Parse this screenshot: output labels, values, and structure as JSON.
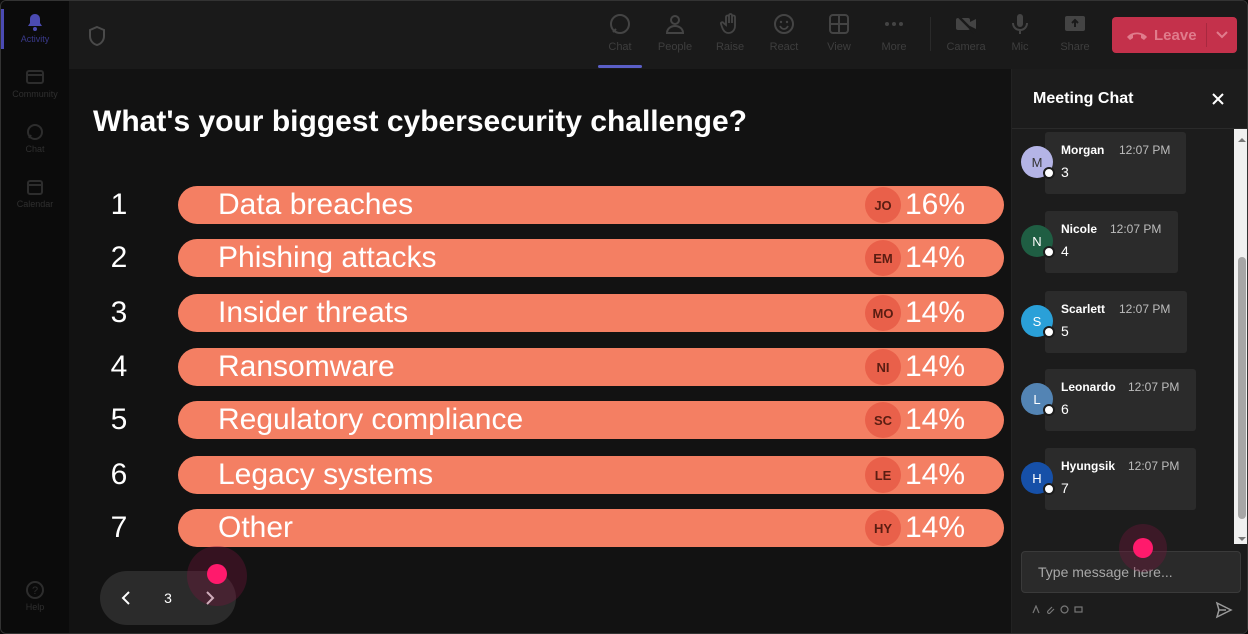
{
  "rail": {
    "items": [
      {
        "label": "Activity",
        "icon": "bell-icon"
      },
      {
        "label": "Community",
        "icon": "community-icon"
      },
      {
        "label": "Chat",
        "icon": "chat-icon"
      },
      {
        "label": "Calendar",
        "icon": "calendar-icon"
      }
    ],
    "help_label": "Help"
  },
  "toolbar": {
    "items": [
      {
        "label": "Chat",
        "icon": "chat-icon"
      },
      {
        "label": "People",
        "icon": "people-icon"
      },
      {
        "label": "Raise",
        "icon": "hand-icon"
      },
      {
        "label": "React",
        "icon": "smiley-icon"
      },
      {
        "label": "View",
        "icon": "grid-icon"
      },
      {
        "label": "More",
        "icon": "more-icon"
      },
      {
        "label": "Camera",
        "icon": "camera-off-icon"
      },
      {
        "label": "Mic",
        "icon": "mic-icon"
      },
      {
        "label": "Share",
        "icon": "share-icon"
      }
    ],
    "leave_label": "Leave"
  },
  "poll": {
    "question": "What's your biggest cybersecurity challenge?",
    "options": [
      {
        "num": "1",
        "label": "Data breaches",
        "initials": "JO",
        "percent": "16%"
      },
      {
        "num": "2",
        "label": "Phishing attacks",
        "initials": "EM",
        "percent": "14%"
      },
      {
        "num": "3",
        "label": "Insider threats",
        "initials": "MO",
        "percent": "14%"
      },
      {
        "num": "4",
        "label": "Ransomware",
        "initials": "NI",
        "percent": "14%"
      },
      {
        "num": "5",
        "label": "Regulatory compliance",
        "initials": "SC",
        "percent": "14%"
      },
      {
        "num": "6",
        "label": "Legacy systems",
        "initials": "LE",
        "percent": "14%"
      },
      {
        "num": "7",
        "label": "Other",
        "initials": "HY",
        "percent": "14%"
      }
    ],
    "page": "3"
  },
  "chat": {
    "title": "Meeting Chat",
    "messages": [
      {
        "name": "Morgan",
        "time": "12:07 PM",
        "text": "3",
        "initial": "M",
        "color": "#b4b4e6"
      },
      {
        "name": "Nicole",
        "time": "12:07 PM",
        "text": "4",
        "initial": "N",
        "color": "#1f5e43"
      },
      {
        "name": "Scarlett",
        "time": "12:07 PM",
        "text": "5",
        "initial": "S",
        "color": "#2aa0d8"
      },
      {
        "name": "Leonardo",
        "time": "12:07 PM",
        "text": "6",
        "initial": "L",
        "color": "#5384b4"
      },
      {
        "name": "Hyungsik",
        "time": "12:07 PM",
        "text": "7",
        "initial": "H",
        "color": "#1650a8"
      }
    ],
    "input_placeholder": "Type message here..."
  },
  "colors": {
    "bar": "#f47f63",
    "initials_badge": "#e9604a",
    "leave": "#c4314b",
    "cursor": "#ff1a6c",
    "accent": "#5b5fc7"
  }
}
